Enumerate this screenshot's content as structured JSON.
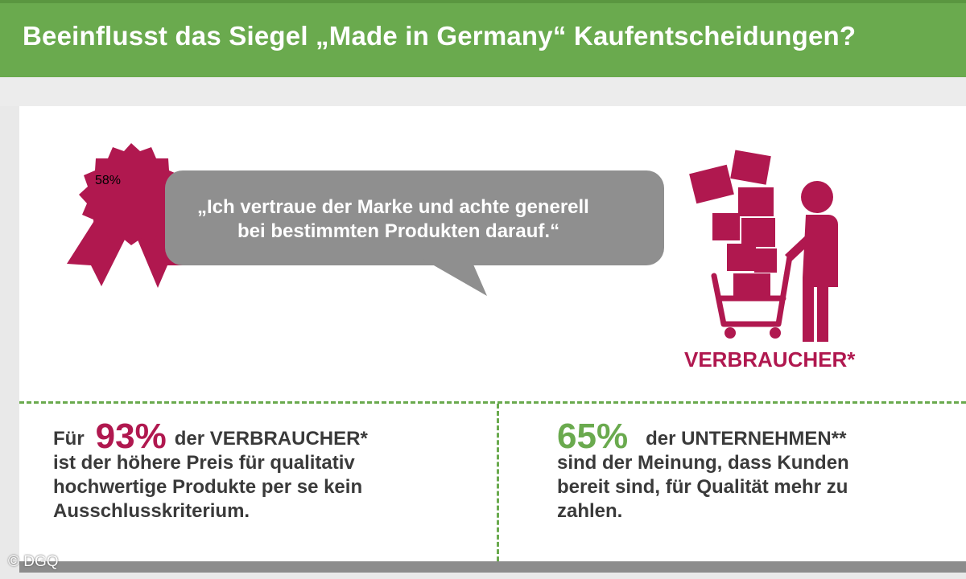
{
  "header": {
    "title": "Beeinflusst das Siegel „Made in Germany“ Kaufentscheidungen?"
  },
  "quote": {
    "percent": "58%",
    "line1": "„Ich vertraue der Marke und achte generell",
    "line2": "bei bestimmten Produkten darauf.“"
  },
  "consumer_label": "VERBRAUCHER*",
  "stat_left": {
    "prefix": "Für",
    "value": "93%",
    "suffix": "der VERBRAUCHER*",
    "line2": "ist der höhere Preis für qualitativ",
    "line3": "hochwertige Produkte per se kein",
    "line4": "Ausschlusskriterium."
  },
  "stat_right": {
    "value": "65%",
    "suffix": "der UNTERNEHMEN**",
    "line2": "sind der Meinung, dass Kunden",
    "line3": "bereit sind, für Qualität mehr zu",
    "line4": "zahlen."
  },
  "copyright": "© DGQ",
  "colors": {
    "accent_green": "#6aaa4e",
    "accent_red": "#b0184f",
    "bubble_gray": "#8f8f8f"
  },
  "icons": [
    "award-rosette-icon",
    "speech-bubble-icon",
    "shopping-cart-person-icon"
  ]
}
